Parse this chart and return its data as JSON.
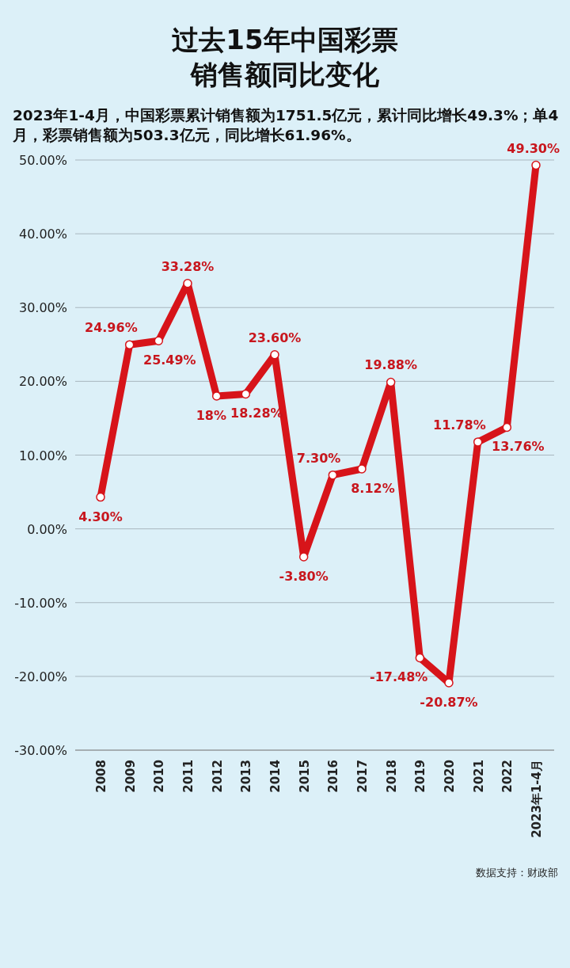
{
  "chart_data": {
    "type": "line",
    "title": "过去15年中国彩票销售额同比变化",
    "subtitle": "2023年1-4月，中国彩票累计销售额为1751.5亿元，累计同比增长49.3%；单4月，彩票销售额为503.3亿元，同比增长61.96%。",
    "categories": [
      "2008",
      "2009",
      "2010",
      "2011",
      "2012",
      "2013",
      "2014",
      "2015",
      "2016",
      "2017",
      "2018",
      "2019",
      "2020",
      "2021",
      "2022",
      "2023年1-4月"
    ],
    "series": [
      {
        "color": "#d7141a",
        "values": [
          4.3,
          24.96,
          25.49,
          33.28,
          18,
          18.28,
          23.6,
          -3.8,
          7.3,
          8.12,
          19.88,
          -17.48,
          -20.87,
          11.78,
          13.76,
          49.3
        ],
        "value_labels": [
          "4.30%",
          "24.96%",
          "25.49%",
          "33.28%",
          "18%",
          "18.28%",
          "23.60%",
          "-3.80%",
          "7.30%",
          "8.12%",
          "19.88%",
          "-17.48%",
          "-20.87%",
          "11.78%",
          "13.76%",
          "49.30%"
        ]
      }
    ],
    "ylim": [
      -30,
      50
    ],
    "yticks": [
      {
        "value": 50,
        "label": "50.00%"
      },
      {
        "value": 40,
        "label": "40.00%"
      },
      {
        "value": 30,
        "label": "30.00%"
      },
      {
        "value": 20,
        "label": "20.00%"
      },
      {
        "value": 10,
        "label": "10.00%"
      },
      {
        "value": 0,
        "label": "0.00%"
      },
      {
        "value": -10,
        "label": "-10.00%"
      },
      {
        "value": -20,
        "label": "-20.00%"
      },
      {
        "value": -30,
        "label": "-30.00%"
      }
    ],
    "grid": "y",
    "marker": "circle",
    "line_style": "solid",
    "annotations": [
      "数据支持：财政部"
    ]
  }
}
